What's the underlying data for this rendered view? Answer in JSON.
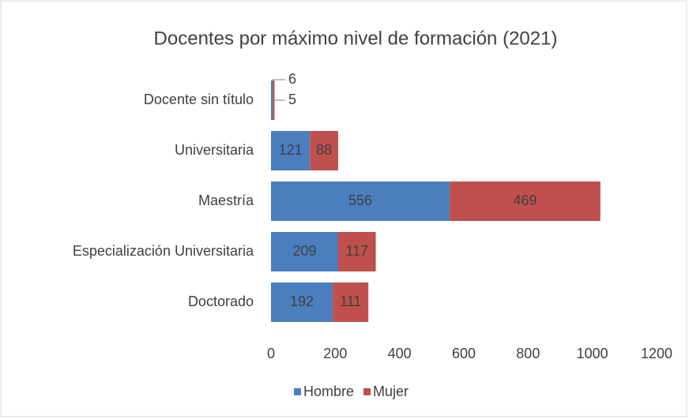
{
  "chart_data": {
    "type": "bar",
    "orientation": "horizontal",
    "stacked": true,
    "title": "Docentes por máximo nivel de formación (2021)",
    "categories": [
      "Docente sin título",
      "Universitaria",
      "Maestría",
      "Especialización Universitaria",
      "Doctorado"
    ],
    "series": [
      {
        "name": "Hombre",
        "color": "#4a7ebf",
        "values": [
          6,
          121,
          556,
          209,
          192
        ]
      },
      {
        "name": "Mujer",
        "color": "#c0504d",
        "values": [
          5,
          88,
          469,
          117,
          111
        ]
      }
    ],
    "xlim": [
      0,
      1200
    ],
    "xticks": [
      0,
      200,
      400,
      600,
      800,
      1000,
      1200
    ],
    "grid": false,
    "legend": "bottom"
  }
}
